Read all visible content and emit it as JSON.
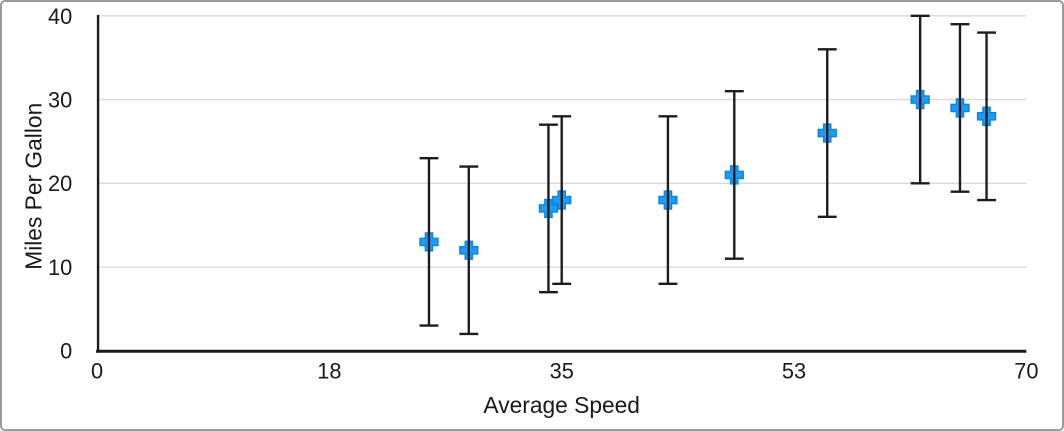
{
  "chart_data": {
    "type": "scatter",
    "xlabel": "Average Speed",
    "ylabel": "Miles Per Gallon",
    "xlim": [
      0,
      70
    ],
    "ylim": [
      0,
      40
    ],
    "x_ticks": [
      {
        "value": 0,
        "label": "0"
      },
      {
        "value": 17.5,
        "label": "18"
      },
      {
        "value": 35,
        "label": "35"
      },
      {
        "value": 52.5,
        "label": "53"
      },
      {
        "value": 70,
        "label": "70"
      }
    ],
    "y_ticks": [
      {
        "value": 0,
        "label": "0"
      },
      {
        "value": 10,
        "label": "10"
      },
      {
        "value": 20,
        "label": "20"
      },
      {
        "value": 30,
        "label": "30"
      },
      {
        "value": 40,
        "label": "40"
      }
    ],
    "gridline_values": [
      10,
      20,
      30,
      40
    ],
    "grid": "horizontal-only",
    "legend": "none",
    "marker": "plus",
    "error_bars": "vertical, symmetric",
    "series": [
      {
        "name": "Miles Per Gallon",
        "points": [
          {
            "x": 25,
            "y": 13,
            "y_error": 10
          },
          {
            "x": 28,
            "y": 12,
            "y_error": 10
          },
          {
            "x": 34,
            "y": 17,
            "y_error": 10
          },
          {
            "x": 35,
            "y": 18,
            "y_error": 10
          },
          {
            "x": 43,
            "y": 18,
            "y_error": 10
          },
          {
            "x": 48,
            "y": 21,
            "y_error": 10
          },
          {
            "x": 55,
            "y": 26,
            "y_error": 10
          },
          {
            "x": 62,
            "y": 30,
            "y_error": 10
          },
          {
            "x": 65,
            "y": 29,
            "y_error": 10
          },
          {
            "x": 67,
            "y": 28,
            "y_error": 10
          }
        ]
      }
    ],
    "colors": {
      "marker_fill": "#1e9cf5",
      "marker_stroke": "#0b86e0",
      "error_bar": "#1c1c1c",
      "axis": "#1a1a1a",
      "gridline": "#d9d9d9",
      "text": "#1a1a1a",
      "background": "#ffffff",
      "frame_border": "#9a9a9a"
    }
  }
}
